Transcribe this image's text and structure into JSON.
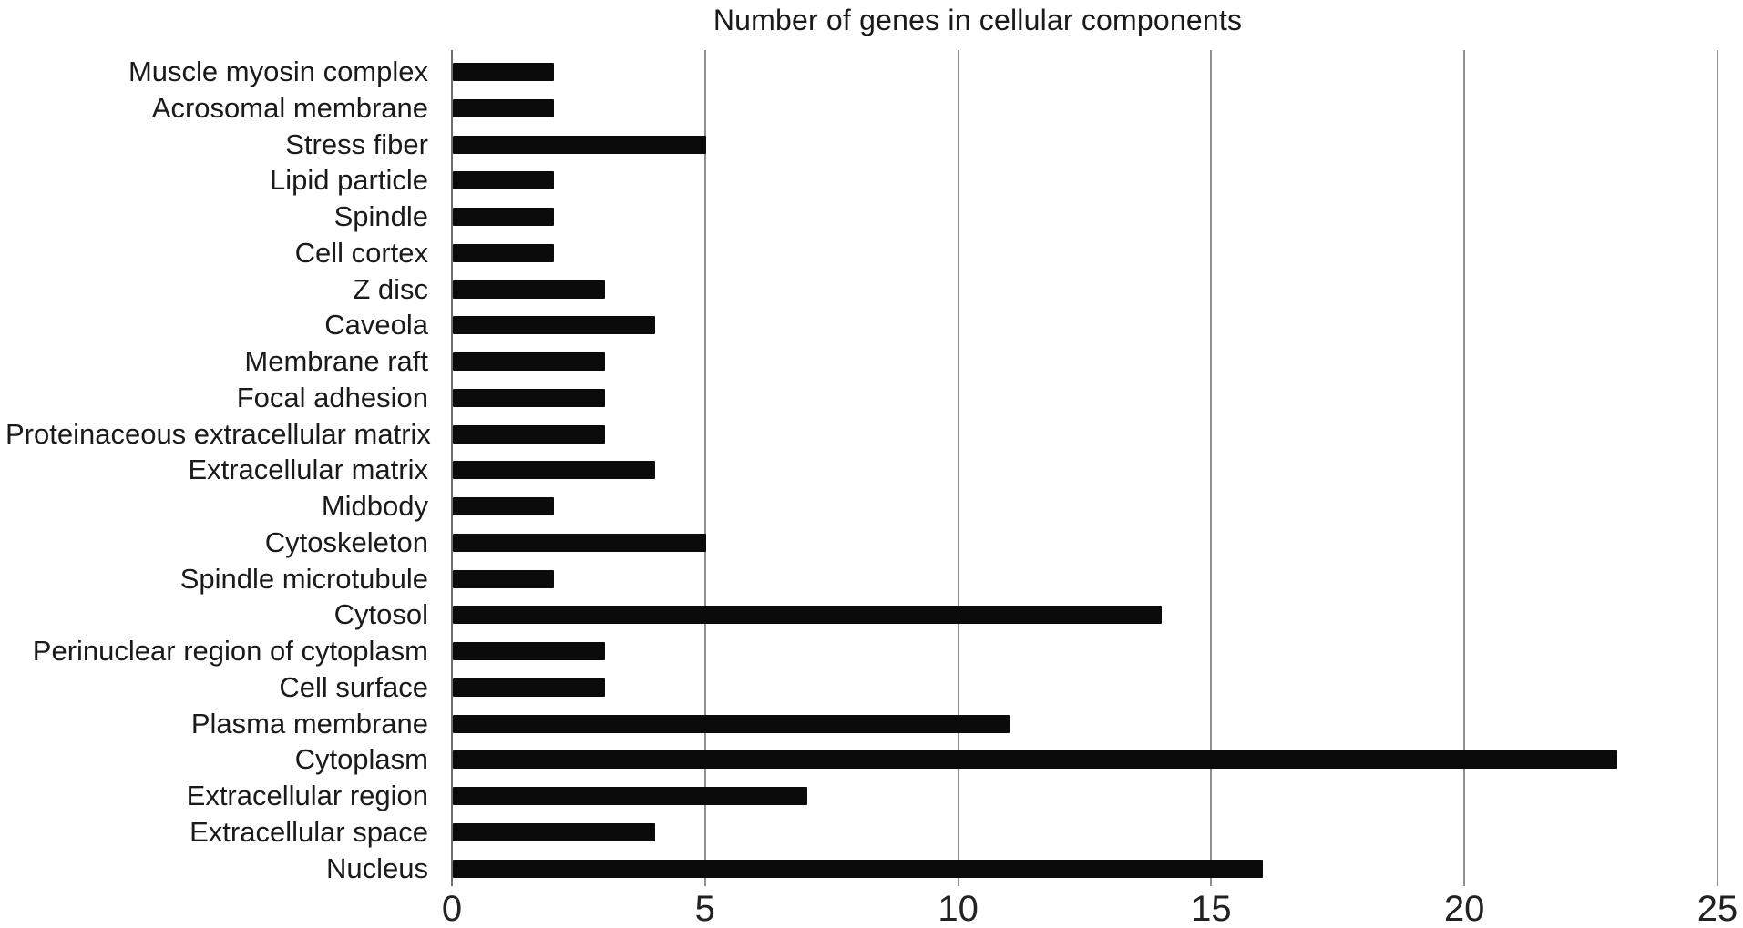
{
  "chart_data": {
    "type": "bar",
    "orientation": "horizontal",
    "title": "Number of genes in cellular components",
    "categories": [
      "Muscle myosin complex",
      "Acrosomal membrane",
      "Stress fiber",
      "Lipid particle",
      "Spindle",
      "Cell cortex",
      "Z disc",
      "Caveola",
      "Membrane raft",
      "Focal adhesion",
      "Proteinaceous extracellular matrix",
      "Extracellular matrix",
      "Midbody",
      "Cytoskeleton",
      "Spindle microtubule",
      "Cytosol",
      "Perinuclear region of cytoplasm",
      "Cell surface",
      "Plasma membrane",
      "Cytoplasm",
      "Extracellular region",
      "Extracellular space",
      "Nucleus"
    ],
    "values": [
      2,
      2,
      5,
      2,
      2,
      2,
      3,
      4,
      3,
      3,
      3,
      4,
      2,
      5,
      2,
      14,
      3,
      3,
      11,
      23,
      7,
      4,
      16
    ],
    "xlabel": "",
    "ylabel": "",
    "xlim": [
      0,
      25
    ],
    "x_ticks": [
      "0",
      "5",
      "10",
      "15",
      "20",
      "25"
    ],
    "grid": "vertical-only",
    "legend": "none",
    "colors": {
      "bar": "#0b0b0b",
      "gridline": "#8f8f8f",
      "axis_line": "#6e6e6e",
      "text": "#1a1a1a",
      "background": "#ffffff"
    }
  }
}
